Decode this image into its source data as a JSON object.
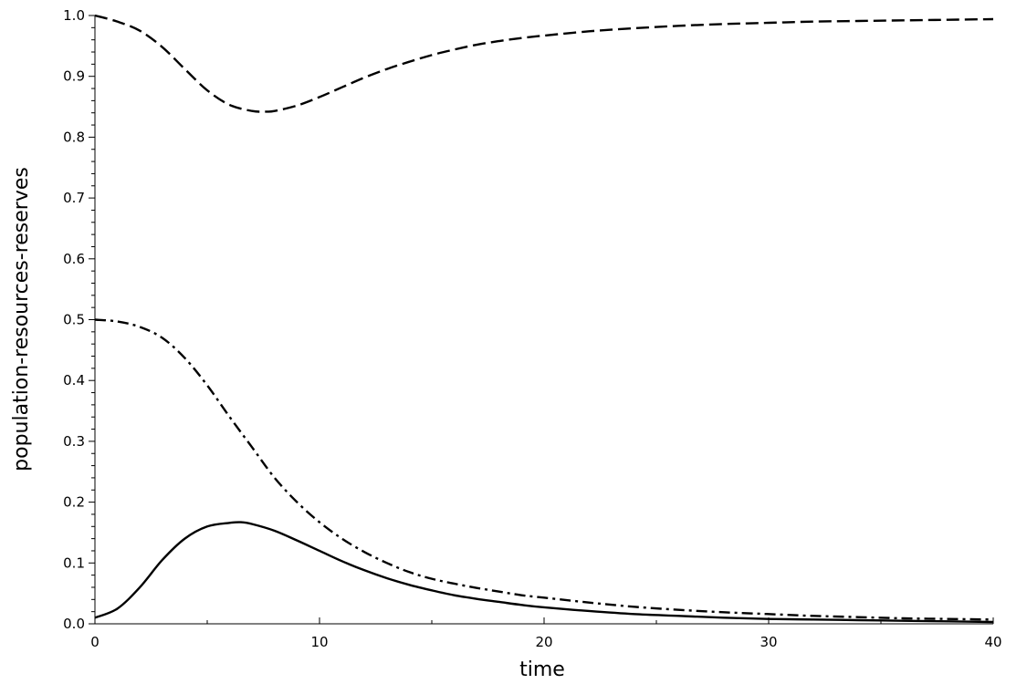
{
  "chart_data": {
    "type": "line",
    "title": "",
    "xlabel": "time",
    "ylabel": "population-resources-reserves",
    "xlim": [
      0,
      40
    ],
    "ylim": [
      0,
      1
    ],
    "x_ticks": [
      "0",
      "10",
      "20",
      "30",
      "40"
    ],
    "y_ticks": [
      "0.0",
      "0.1",
      "0.2",
      "0.3",
      "0.4",
      "0.5",
      "0.6",
      "0.7",
      "0.8",
      "0.9",
      "1.0"
    ],
    "grid": false,
    "legend": "none",
    "series": [
      {
        "style": "dashed",
        "color": "#000000",
        "x": [
          0,
          1,
          2,
          3,
          4,
          5,
          6,
          7,
          7.6,
          8,
          9,
          10,
          11,
          12,
          13,
          14,
          15,
          16,
          17,
          18,
          19,
          20,
          22,
          24,
          26,
          28,
          30,
          32,
          34,
          36,
          38,
          40
        ],
        "y": [
          1.0,
          0.99,
          0.975,
          0.948,
          0.912,
          0.877,
          0.853,
          0.843,
          0.842,
          0.843,
          0.852,
          0.866,
          0.882,
          0.898,
          0.912,
          0.924,
          0.935,
          0.944,
          0.952,
          0.958,
          0.963,
          0.967,
          0.974,
          0.979,
          0.983,
          0.986,
          0.988,
          0.99,
          0.991,
          0.992,
          0.993,
          0.994
        ]
      },
      {
        "style": "dash-dot",
        "color": "#000000",
        "x": [
          0,
          1,
          2,
          3,
          4,
          5,
          6,
          7,
          8,
          9,
          10,
          11,
          12,
          13,
          14,
          15,
          16,
          17,
          18,
          19,
          20,
          22,
          24,
          26,
          28,
          30,
          32,
          34,
          36,
          38,
          40
        ],
        "y": [
          0.5,
          0.497,
          0.488,
          0.47,
          0.437,
          0.392,
          0.34,
          0.29,
          0.24,
          0.2,
          0.167,
          0.14,
          0.118,
          0.1,
          0.085,
          0.074,
          0.066,
          0.059,
          0.053,
          0.047,
          0.043,
          0.035,
          0.028,
          0.023,
          0.019,
          0.016,
          0.013,
          0.011,
          0.009,
          0.008,
          0.007
        ]
      },
      {
        "style": "solid",
        "color": "#000000",
        "x": [
          0,
          1,
          2,
          3,
          4,
          5,
          6,
          6.5,
          7,
          8,
          9,
          10,
          11,
          12,
          13,
          14,
          15,
          16,
          17,
          18,
          19,
          20,
          22,
          24,
          26,
          28,
          30,
          32,
          34,
          36,
          38,
          40
        ],
        "y": [
          0.01,
          0.025,
          0.06,
          0.105,
          0.14,
          0.16,
          0.166,
          0.167,
          0.164,
          0.153,
          0.137,
          0.12,
          0.103,
          0.088,
          0.075,
          0.064,
          0.055,
          0.047,
          0.041,
          0.036,
          0.031,
          0.027,
          0.021,
          0.016,
          0.013,
          0.01,
          0.008,
          0.007,
          0.006,
          0.005,
          0.004,
          0.003
        ]
      }
    ]
  }
}
